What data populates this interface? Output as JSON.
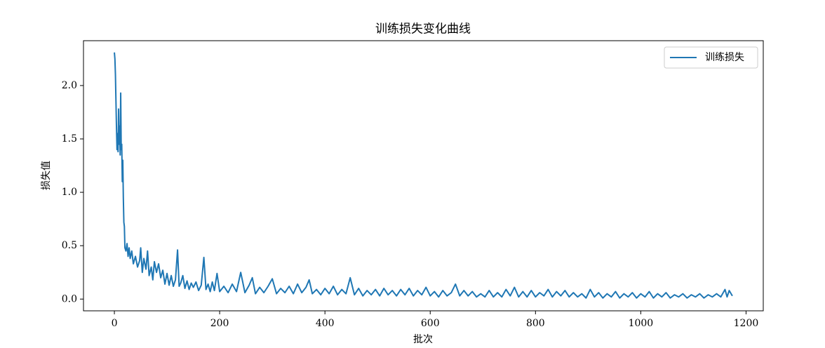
{
  "chart_data": {
    "type": "line",
    "title": "训练损失变化曲线",
    "xlabel": "批次",
    "ylabel": "损失值",
    "x": [
      0,
      1,
      2,
      3,
      4,
      5,
      6,
      7,
      8,
      9,
      10,
      11,
      12,
      13,
      14,
      15,
      16,
      17,
      18,
      19,
      20,
      22,
      24,
      26,
      28,
      30,
      33,
      36,
      40,
      44,
      48,
      50,
      53,
      56,
      60,
      63,
      66,
      70,
      73,
      76,
      80,
      84,
      88,
      92,
      96,
      100,
      104,
      108,
      112,
      116,
      120,
      123,
      126,
      130,
      134,
      138,
      142,
      146,
      150,
      155,
      160,
      165,
      170,
      174,
      178,
      182,
      186,
      190,
      195,
      200,
      208,
      216,
      224,
      232,
      240,
      248,
      256,
      262,
      268,
      276,
      284,
      292,
      300,
      308,
      316,
      324,
      332,
      340,
      348,
      356,
      364,
      370,
      376,
      384,
      392,
      400,
      408,
      416,
      424,
      432,
      440,
      448,
      456,
      464,
      472,
      480,
      488,
      496,
      504,
      512,
      520,
      528,
      536,
      544,
      552,
      560,
      568,
      576,
      584,
      592,
      600,
      608,
      616,
      624,
      632,
      640,
      648,
      656,
      664,
      672,
      680,
      688,
      696,
      704,
      712,
      720,
      728,
      736,
      744,
      752,
      760,
      768,
      776,
      784,
      792,
      800,
      808,
      816,
      824,
      832,
      840,
      848,
      856,
      864,
      872,
      880,
      888,
      896,
      904,
      912,
      920,
      928,
      936,
      944,
      952,
      960,
      968,
      976,
      984,
      992,
      1000,
      1008,
      1016,
      1024,
      1032,
      1040,
      1048,
      1056,
      1064,
      1072,
      1080,
      1088,
      1096,
      1104,
      1112,
      1120,
      1128,
      1136,
      1144,
      1152,
      1160,
      1164,
      1168,
      1174
    ],
    "series": [
      {
        "name": "训练损失",
        "color": "#1f77b4",
        "values": [
          2.31,
          2.25,
          2.1,
          1.85,
          1.6,
          1.4,
          1.55,
          1.38,
          1.78,
          1.45,
          1.62,
          1.35,
          1.93,
          1.4,
          1.45,
          1.1,
          1.3,
          0.95,
          0.72,
          0.68,
          0.48,
          0.45,
          0.52,
          0.4,
          0.48,
          0.38,
          0.45,
          0.33,
          0.4,
          0.3,
          0.36,
          0.48,
          0.25,
          0.38,
          0.28,
          0.45,
          0.22,
          0.3,
          0.18,
          0.35,
          0.25,
          0.33,
          0.2,
          0.27,
          0.14,
          0.24,
          0.13,
          0.22,
          0.12,
          0.18,
          0.46,
          0.12,
          0.15,
          0.22,
          0.1,
          0.17,
          0.09,
          0.15,
          0.11,
          0.16,
          0.08,
          0.13,
          0.39,
          0.09,
          0.14,
          0.07,
          0.16,
          0.08,
          0.24,
          0.07,
          0.12,
          0.06,
          0.14,
          0.07,
          0.25,
          0.06,
          0.13,
          0.2,
          0.05,
          0.11,
          0.06,
          0.12,
          0.19,
          0.05,
          0.1,
          0.06,
          0.12,
          0.05,
          0.14,
          0.06,
          0.11,
          0.18,
          0.05,
          0.09,
          0.04,
          0.1,
          0.05,
          0.12,
          0.04,
          0.09,
          0.05,
          0.2,
          0.04,
          0.1,
          0.03,
          0.08,
          0.04,
          0.09,
          0.03,
          0.1,
          0.04,
          0.08,
          0.03,
          0.09,
          0.04,
          0.1,
          0.03,
          0.08,
          0.04,
          0.11,
          0.03,
          0.07,
          0.02,
          0.08,
          0.03,
          0.06,
          0.14,
          0.03,
          0.08,
          0.03,
          0.07,
          0.02,
          0.05,
          0.02,
          0.08,
          0.02,
          0.06,
          0.02,
          0.09,
          0.03,
          0.11,
          0.02,
          0.07,
          0.02,
          0.08,
          0.02,
          0.06,
          0.03,
          0.09,
          0.02,
          0.07,
          0.03,
          0.08,
          0.02,
          0.06,
          0.02,
          0.05,
          0.01,
          0.09,
          0.02,
          0.06,
          0.01,
          0.05,
          0.02,
          0.07,
          0.01,
          0.05,
          0.02,
          0.06,
          0.01,
          0.05,
          0.02,
          0.07,
          0.01,
          0.05,
          0.02,
          0.06,
          0.01,
          0.04,
          0.02,
          0.05,
          0.01,
          0.04,
          0.02,
          0.05,
          0.01,
          0.04,
          0.02,
          0.05,
          0.02,
          0.09,
          0.02,
          0.08,
          0.03
        ]
      }
    ],
    "xlim": [
      -58.7,
      1232.7
    ],
    "ylim": [
      -0.11,
      2.42
    ],
    "xticks": [
      0,
      200,
      400,
      600,
      800,
      1000,
      1200
    ],
    "yticks": [
      {
        "value": 0,
        "label": "0.0"
      },
      0.5,
      {
        "value": 1,
        "label": "1.0"
      },
      1.5,
      {
        "value": 2,
        "label": "2.0"
      }
    ],
    "legend": "upper right"
  }
}
